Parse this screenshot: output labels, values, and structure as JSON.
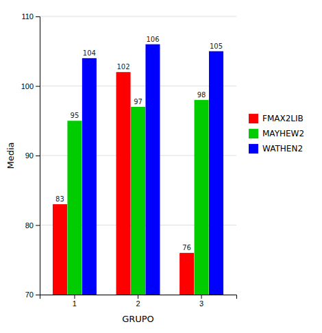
{
  "chart_data": {
    "type": "bar",
    "categories": [
      "1",
      "2",
      "3"
    ],
    "series": [
      {
        "name": "FMAX2LIB",
        "color": "#ff0000",
        "values": [
          83,
          102,
          76
        ]
      },
      {
        "name": "MAYHEW2",
        "color": "#00cc00",
        "values": [
          95,
          97,
          98
        ]
      },
      {
        "name": "WATHEN2",
        "color": "#0000ff",
        "values": [
          104,
          106,
          105
        ]
      }
    ],
    "xlabel": "GRUPO",
    "ylabel": "Media",
    "ylim": [
      70,
      110
    ],
    "yticks": [
      70,
      80,
      90,
      100,
      110
    ],
    "grid": true,
    "legend": "right",
    "data_labels": true
  }
}
